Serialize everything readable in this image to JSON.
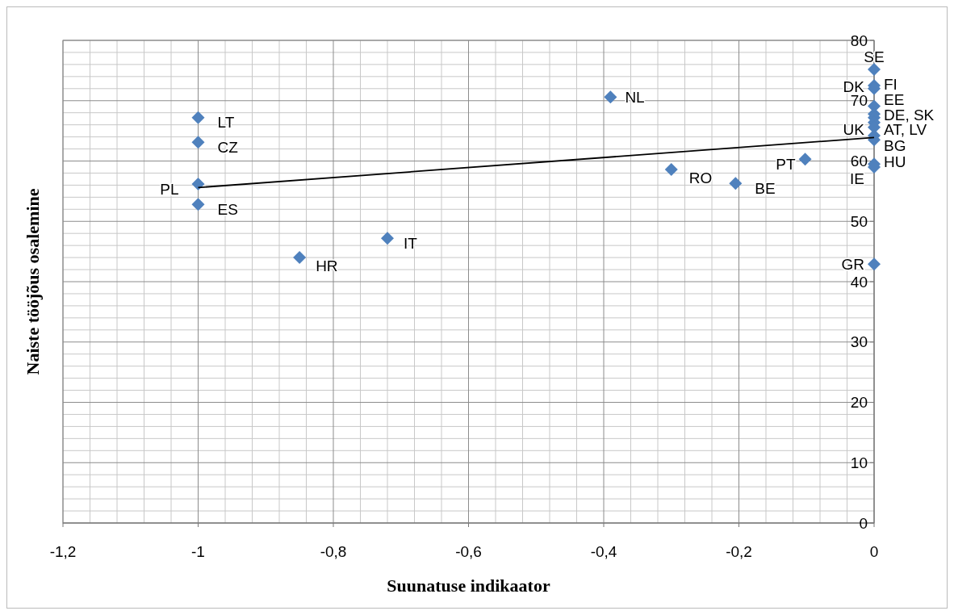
{
  "chart_data": {
    "type": "scatter",
    "xlabel": "Suunatuse indikaator",
    "ylabel": "Naiste tööjõus osalemine",
    "xlim": [
      -1.2,
      0
    ],
    "xticks": [
      {
        "value": -1.2,
        "label": "-1,2"
      },
      {
        "value": -1,
        "label": "-1"
      },
      {
        "value": -0.8,
        "label": "-0,8"
      },
      {
        "value": -0.6,
        "label": "-0,6"
      },
      {
        "value": -0.4,
        "label": "-0,4"
      },
      {
        "value": -0.2,
        "label": "-0,2"
      },
      {
        "value": 0,
        "label": "0"
      }
    ],
    "ylim": [
      0,
      80
    ],
    "yticks": [
      0,
      10,
      20,
      30,
      40,
      50,
      60,
      70,
      80
    ],
    "grid": true,
    "series": [
      {
        "type": "scatter",
        "color": "#4f81bd",
        "marker": "diamond",
        "x": [
          -1,
          -1,
          -1,
          -1,
          -0.85,
          -0.72,
          -0.39,
          -0.3,
          -0.205,
          -0.102,
          0,
          0,
          0,
          0,
          0,
          0,
          0,
          0,
          0,
          0,
          0,
          0,
          0
        ],
        "values": [
          67.2,
          63.1,
          56.2,
          52.8,
          44.0,
          47.2,
          70.6,
          58.6,
          56.3,
          60.3,
          75.2,
          72.5,
          72.0,
          69.1,
          67.8,
          67.2,
          66.4,
          65.6,
          64.2,
          63.5,
          59.5,
          59.0,
          42.9
        ]
      },
      {
        "type": "line",
        "color": "#000000",
        "marker": "none",
        "line_style": "solid",
        "x": [
          -1,
          0
        ],
        "values": [
          55.6,
          63.9
        ]
      }
    ],
    "annotations": [
      {
        "text": "LT",
        "x": -1,
        "y": 67.2
      },
      {
        "text": "CZ",
        "x": -1,
        "y": 63.1
      },
      {
        "text": "PL",
        "x": -1,
        "y": 56.2
      },
      {
        "text": "ES",
        "x": -1,
        "y": 52.8
      },
      {
        "text": "HR",
        "x": -0.85,
        "y": 44.0
      },
      {
        "text": "IT",
        "x": -0.72,
        "y": 47.2
      },
      {
        "text": "NL",
        "x": -0.39,
        "y": 70.6
      },
      {
        "text": "RO",
        "x": -0.3,
        "y": 58.6
      },
      {
        "text": "BE",
        "x": -0.205,
        "y": 56.3
      },
      {
        "text": "PT",
        "x": -0.102,
        "y": 60.3
      },
      {
        "text": "SE",
        "x": 0,
        "y": 75.2
      },
      {
        "text": "FI",
        "x": 0,
        "y": 72.5
      },
      {
        "text": "DK",
        "x": 0,
        "y": 72.0
      },
      {
        "text": "EE",
        "x": 0,
        "y": 69.1
      },
      {
        "text": "DE, SK",
        "x": 0,
        "y": 67.8
      },
      {
        "text": "AT, LV",
        "x": 0,
        "y": 66.4
      },
      {
        "text": "UK",
        "x": 0,
        "y": 64.2
      },
      {
        "text": "BG",
        "x": 0,
        "y": 63.5
      },
      {
        "text": "HU",
        "x": 0,
        "y": 59.5
      },
      {
        "text": "IE",
        "x": 0,
        "y": 59.0
      },
      {
        "text": "GR",
        "x": 0,
        "y": 42.9
      }
    ]
  }
}
